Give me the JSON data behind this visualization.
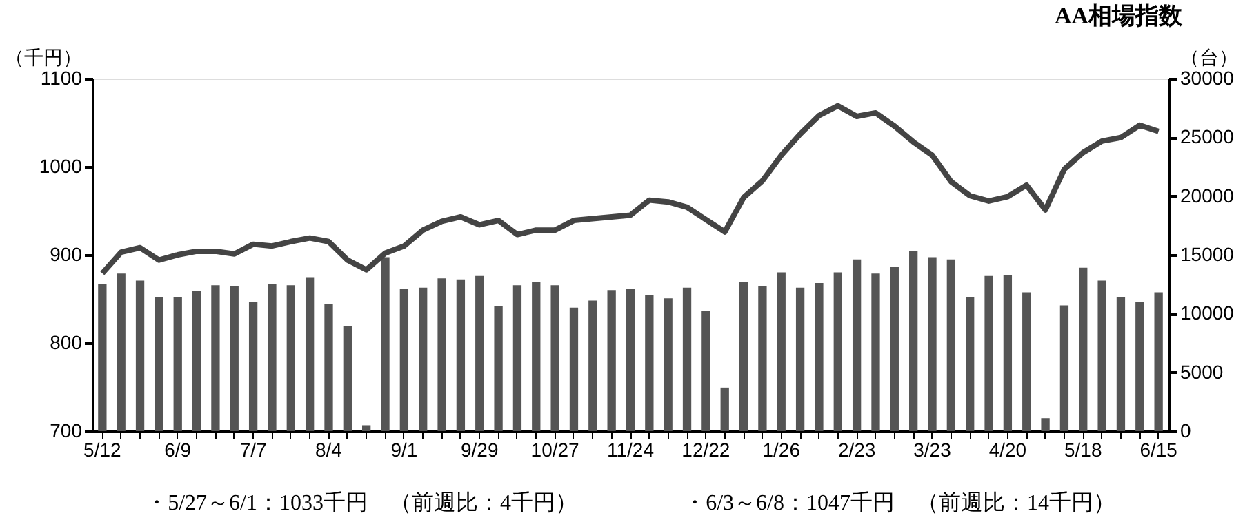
{
  "chart_data": {
    "type": "bar",
    "title": "AA相場指数",
    "ylabel": "（千円）",
    "y2label": "（台）",
    "categories": [
      "5/12",
      null,
      null,
      null,
      "6/9",
      null,
      null,
      null,
      "7/7",
      null,
      null,
      null,
      "8/4",
      null,
      null,
      null,
      "9/1",
      null,
      null,
      null,
      "9/29",
      null,
      null,
      null,
      "10/27",
      null,
      null,
      null,
      "11/24",
      null,
      null,
      null,
      "12/22",
      null,
      null,
      null,
      "1/26",
      null,
      null,
      null,
      "2/23",
      null,
      null,
      null,
      "3/23",
      null,
      null,
      null,
      "4/20",
      null,
      null,
      null,
      "5/18",
      null,
      null,
      null,
      "6/15"
    ],
    "series": [
      {
        "axis": "y2",
        "color": "#555555",
        "values": [
          12500,
          13400,
          12800,
          11400,
          11400,
          11900,
          12400,
          12300,
          11000,
          12500,
          12400,
          13100,
          10800,
          8900,
          500,
          14800,
          12100,
          12200,
          13000,
          12900,
          13200,
          10600,
          12400,
          12700,
          12400,
          10500,
          11100,
          12000,
          12100,
          11600,
          11300,
          12200,
          10200,
          3700,
          12700,
          12300,
          13500,
          12200,
          12600,
          13500,
          14600,
          13400,
          14000,
          15300,
          14800,
          14600,
          11400,
          13200,
          13300,
          11800,
          1100,
          10700,
          13900,
          12800,
          11400,
          11000,
          11800
        ]
      },
      {
        "type": "line",
        "color": "#444444",
        "values": [
          879,
          903,
          908,
          894,
          900,
          904,
          904,
          901,
          912,
          910,
          915,
          919,
          915,
          894,
          883,
          902,
          910,
          928,
          938,
          943,
          934,
          939,
          923,
          928,
          928,
          939,
          941,
          943,
          945,
          962,
          960,
          954,
          940,
          926,
          965,
          984,
          1013,
          1037,
          1058,
          1069,
          1057,
          1061,
          1046,
          1028,
          1013,
          983,
          967,
          961,
          966,
          979,
          951,
          997,
          1016,
          1029,
          1033,
          1047,
          1040
        ]
      }
    ],
    "ylim": [
      700,
      1100
    ],
    "yticks": [
      700,
      800,
      900,
      1000,
      1100
    ],
    "y2lim": [
      0,
      30000
    ],
    "y2ticks": [
      0,
      5000,
      10000,
      15000,
      20000,
      25000,
      30000
    ],
    "annotations": [
      "・5/27～6/1：1033千円　（前週比：4千円）",
      "・6/3～6/8：1047千円　（前週比：14千円）"
    ]
  }
}
